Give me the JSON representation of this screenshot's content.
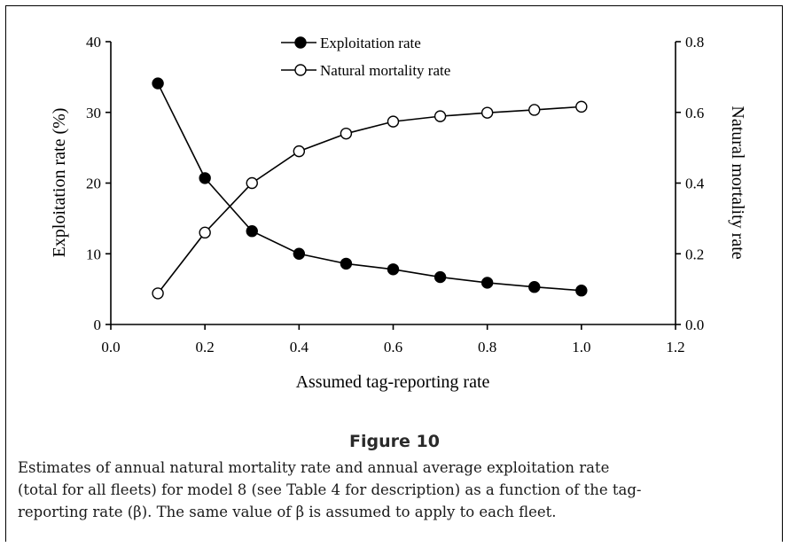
{
  "figure": {
    "title": "Figure 10",
    "caption_lines": [
      "Estimates of annual natural mortality rate and annual average exploitation rate",
      "(total for all fleets) for model 8 (see Table 4 for description) as a function of the tag-",
      "reporting rate (β). The same value of β is assumed to apply to each fleet."
    ]
  },
  "chart_data": {
    "type": "line",
    "xlabel": "Assumed tag-reporting rate",
    "ylabel_left": "Exploitation rate (%)",
    "ylabel_right": "Natural mortality rate",
    "xlim": [
      0.0,
      1.2
    ],
    "ylim_left": [
      0,
      40
    ],
    "ylim_right": [
      0.0,
      0.8
    ],
    "x_ticks": [
      "0.0",
      "0.2",
      "0.4",
      "0.6",
      "0.8",
      "1.0",
      "1.2"
    ],
    "y_left_ticks": [
      "0",
      "10",
      "20",
      "30",
      "40"
    ],
    "y_right_ticks": [
      "0.0",
      "0.2",
      "0.4",
      "0.6",
      "0.8"
    ],
    "legend_position": "top-center",
    "grid": false,
    "series": [
      {
        "name": "Exploitation rate",
        "axis": "left",
        "marker": "filled-circle",
        "x": [
          0.1,
          0.2,
          0.3,
          0.4,
          0.5,
          0.6,
          0.7,
          0.8,
          0.9,
          1.0
        ],
        "y": [
          34.1,
          20.7,
          13.2,
          10.0,
          8.6,
          7.8,
          6.7,
          5.9,
          5.3,
          4.8
        ]
      },
      {
        "name": "Natural mortality rate",
        "axis": "right",
        "marker": "open-circle",
        "x": [
          0.1,
          0.2,
          0.3,
          0.4,
          0.5,
          0.6,
          0.7,
          0.8,
          0.9,
          1.0
        ],
        "y": [
          0.088,
          0.26,
          0.4,
          0.49,
          0.54,
          0.574,
          0.589,
          0.599,
          0.607,
          0.616
        ]
      }
    ]
  }
}
